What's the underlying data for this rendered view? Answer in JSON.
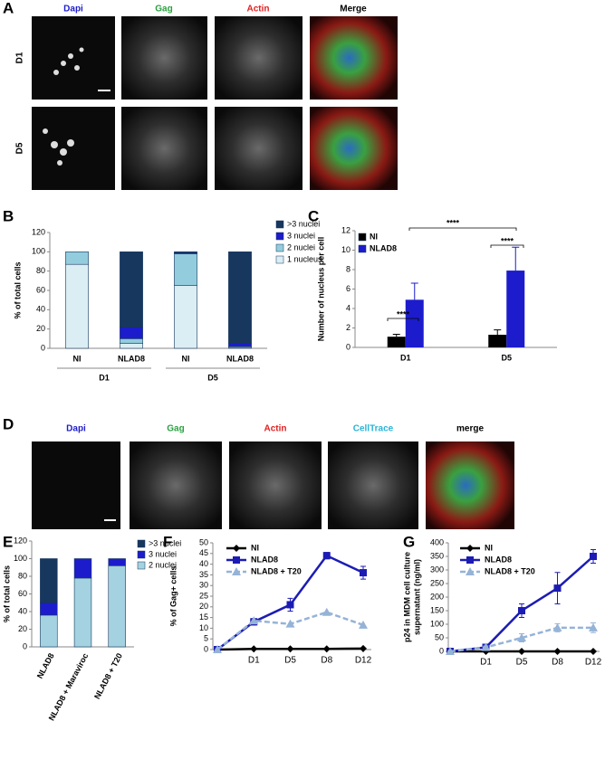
{
  "figure": {
    "panel_labels": [
      "A",
      "B",
      "C",
      "D",
      "E",
      "F",
      "G"
    ],
    "panel_a": {
      "columns": [
        "Dapi",
        "Gag",
        "Actin",
        "Merge"
      ],
      "rows": [
        "D1",
        "D5"
      ]
    },
    "panel_d": {
      "columns": [
        "Dapi",
        "Gag",
        "Actin",
        "CellTrace",
        "merge"
      ]
    }
  },
  "chart_data": [
    {
      "type": "bar",
      "stacked": true,
      "ylabel": "% of total cells",
      "categories": [
        "NI",
        "NLAD8",
        "NI",
        "NLAD8"
      ],
      "groups": [
        "D1",
        "D5"
      ],
      "series": [
        {
          "name": "1 nucleus",
          "color": "#dbeef4",
          "values": [
            87,
            5,
            65,
            1
          ]
        },
        {
          "name": "2 nuclei",
          "color": "#93cddd",
          "values": [
            13,
            5,
            33,
            1
          ]
        },
        {
          "name": "3 nuclei",
          "color": "#1c1ccc",
          "values": [
            0,
            12,
            1,
            3
          ]
        },
        {
          "name": ">3 nuclei",
          "color": "#17375e",
          "values": [
            0,
            78,
            1,
            95
          ]
        }
      ],
      "ylim": [
        0,
        120
      ],
      "yticks": [
        0,
        20,
        40,
        60,
        80,
        100,
        120
      ]
    },
    {
      "type": "bar",
      "ylabel": "Number of nucleus per cell",
      "categories": [
        "D1",
        "D5"
      ],
      "series": [
        {
          "name": "NI",
          "color": "#000000",
          "values": [
            1.1,
            1.3
          ],
          "errors": [
            0.25,
            0.5
          ]
        },
        {
          "name": "NLAD8",
          "color": "#1c1ccc",
          "values": [
            4.9,
            7.9
          ],
          "errors": [
            1.7,
            2.4
          ]
        }
      ],
      "ylim": [
        0,
        12
      ],
      "yticks": [
        0,
        2,
        4,
        6,
        8,
        10,
        12
      ],
      "annotations": [
        "****",
        "****",
        "****"
      ]
    },
    {
      "type": "bar",
      "stacked": true,
      "ylabel": "% of total cells",
      "categories": [
        "NLAD8",
        "NLAD8 + Maraviroc",
        "NLAD8 + T20"
      ],
      "series": [
        {
          "name": "2 nuclei",
          "color": "#a5d2e0",
          "values": [
            36,
            78,
            92
          ]
        },
        {
          "name": "3 nuclei",
          "color": "#1c1ccc",
          "values": [
            14,
            22,
            8
          ]
        },
        {
          "name": ">3 nuclei",
          "color": "#17375e",
          "values": [
            50,
            0,
            0
          ]
        }
      ],
      "ylim": [
        0,
        120
      ],
      "yticks": [
        0,
        20,
        40,
        60,
        80,
        100,
        120
      ]
    },
    {
      "type": "line",
      "ylabel": "% of Gag+ cells",
      "categories": [
        null,
        "D1",
        "D5",
        "D8",
        "D12"
      ],
      "series": [
        {
          "name": "NI",
          "color": "#000000",
          "marker": "diamond",
          "values": [
            0,
            0.3,
            0.3,
            0.3,
            0.5
          ]
        },
        {
          "name": "NLAD8",
          "color": "#1c1cb4",
          "marker": "square",
          "values": [
            0,
            13,
            21,
            44,
            36
          ],
          "errors": [
            0,
            1.5,
            3,
            1.5,
            3
          ]
        },
        {
          "name": "NLAD8 + T20",
          "color": "#95b3d7",
          "marker": "triangle",
          "dash": true,
          "values": [
            0,
            13.5,
            12,
            17.5,
            11.5
          ]
        }
      ],
      "ylim": [
        0,
        50
      ],
      "yticks": [
        0,
        5,
        10,
        15,
        20,
        25,
        30,
        35,
        40,
        45,
        50
      ]
    },
    {
      "type": "line",
      "ylabel": [
        "p24 in MDM cell culture",
        "supernatant (ng/ml)"
      ],
      "categories": [
        null,
        "D1",
        "D5",
        "D8",
        "D12"
      ],
      "series": [
        {
          "name": "NI",
          "color": "#000000",
          "marker": "diamond",
          "values": [
            0,
            0,
            0,
            0,
            0
          ]
        },
        {
          "name": "NLAD8",
          "color": "#1c1cb4",
          "marker": "square",
          "values": [
            0,
            15,
            150,
            233,
            350
          ],
          "errors": [
            0,
            5,
            25,
            58,
            25
          ]
        },
        {
          "name": "NLAD8 + T20",
          "color": "#95b3d7",
          "marker": "triangle",
          "dash": true,
          "values": [
            0,
            15,
            50,
            87,
            87
          ],
          "errors": [
            0,
            5,
            15,
            15,
            18
          ]
        }
      ],
      "ylim": [
        0,
        400
      ],
      "yticks": [
        0,
        50,
        100,
        150,
        200,
        250,
        300,
        350,
        400
      ]
    }
  ]
}
